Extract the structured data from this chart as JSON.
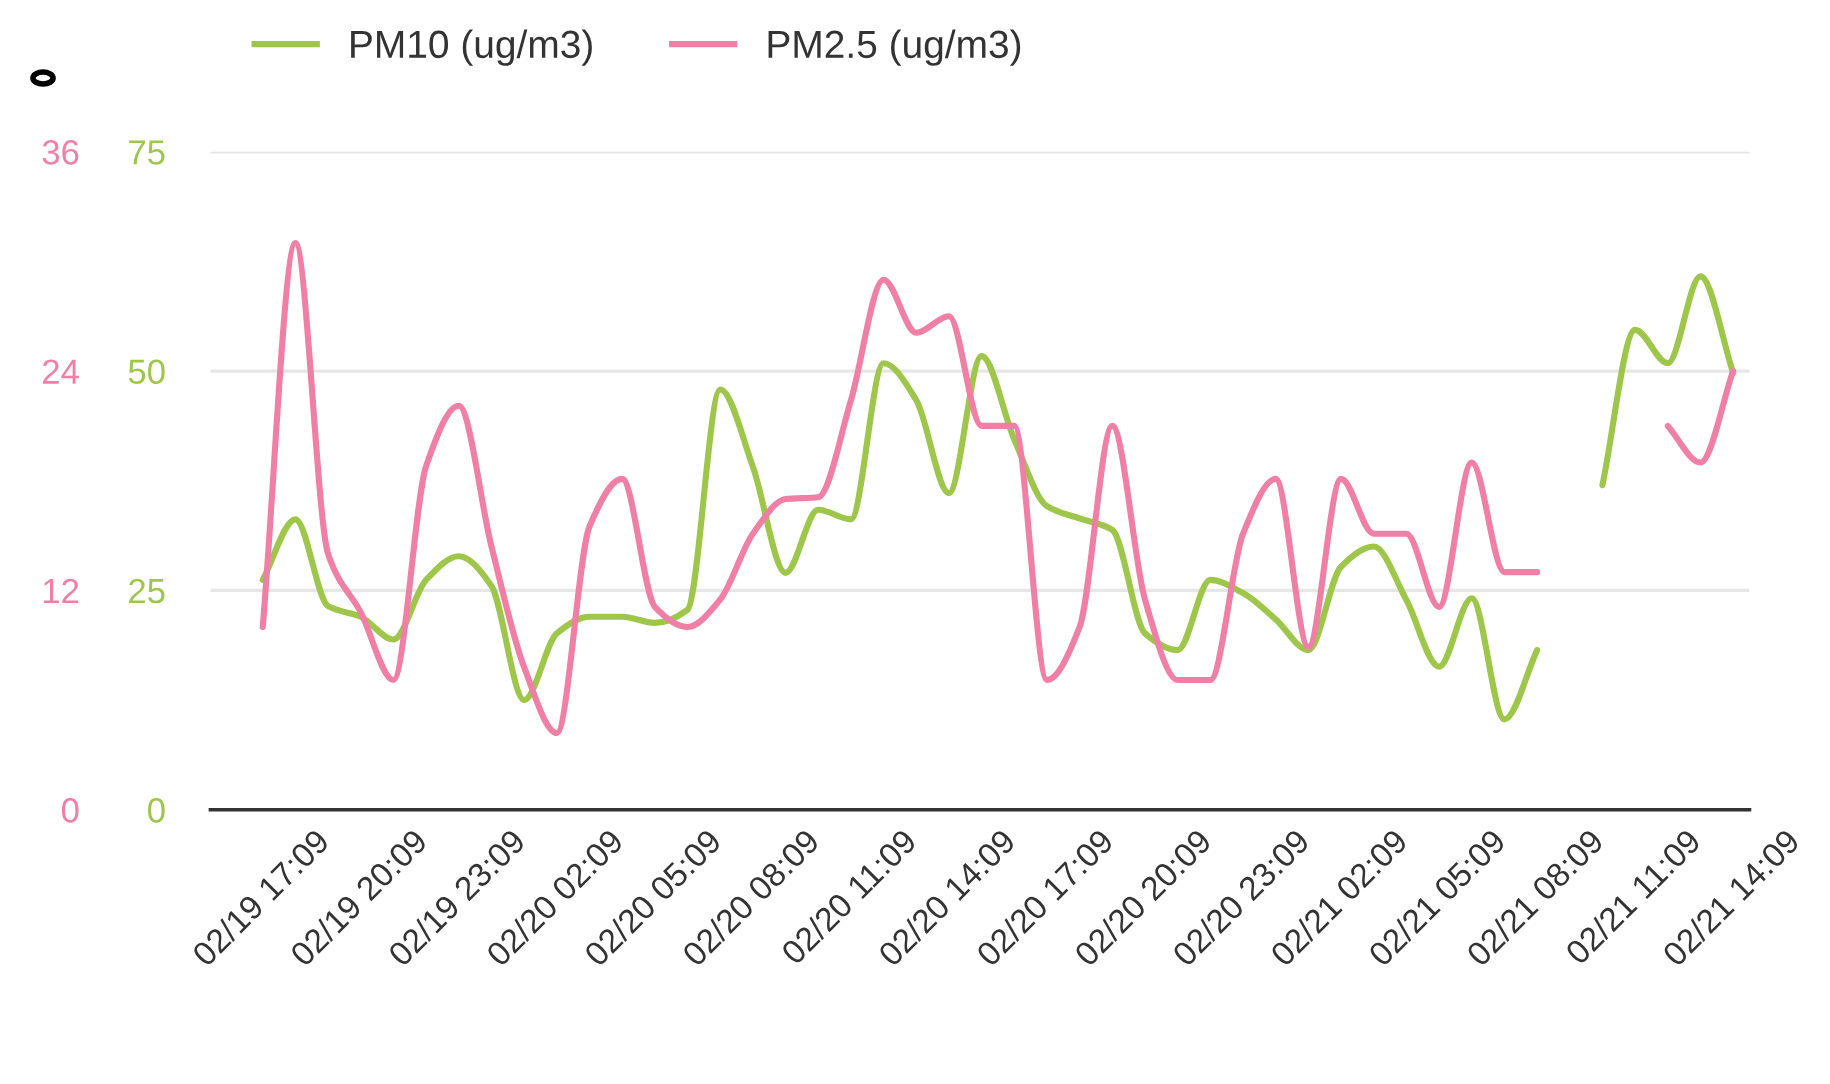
{
  "chart_data": {
    "type": "line",
    "categories": [
      "02/19 17:09",
      null,
      null,
      "02/19 20:09",
      null,
      null,
      "02/19 23:09",
      null,
      null,
      "02/20 02:09",
      null,
      null,
      "02/20 05:09",
      null,
      null,
      "02/20 08:09",
      null,
      null,
      "02/20 11:09",
      null,
      null,
      "02/20 14:09",
      null,
      null,
      "02/20 17:09",
      null,
      null,
      "02/20 20:09",
      null,
      null,
      "02/20 23:09",
      null,
      null,
      "02/21 02:09",
      null,
      null,
      "02/21 05:09",
      null,
      null,
      "02/21 08:09",
      null,
      null,
      "02/21 11:09",
      null,
      null,
      "02/21 14:09"
    ],
    "series": [
      {
        "name": "PM10 (ug/m3)",
        "color": "#9dc64a",
        "values": [
          26.2,
          33.1,
          23.2,
          22.0,
          19.4,
          26.2,
          28.9,
          25.5,
          12.5,
          20.1,
          22.0,
          22.0,
          21.3,
          22.8,
          47.9,
          39.1,
          27.0,
          34.2,
          33.1,
          50.9,
          46.7,
          36.1,
          51.7,
          42.2,
          34.6,
          33.2,
          31.9,
          20.1,
          18.2,
          26.2,
          24.7,
          21.7,
          18.2,
          27.7,
          30.0,
          23.9,
          16.3,
          24.1,
          10.3,
          18.2,
          null,
          37.0,
          54.7,
          50.9,
          60.8,
          49.8
        ]
      },
      {
        "name": "PM2.5 (ug/m3)",
        "color": "#f07fa6",
        "axis": "y2",
        "values": [
          10.0,
          31.0,
          14.0,
          10.8,
          7.1,
          18.8,
          22.1,
          14.4,
          7.8,
          4.2,
          15.5,
          18.1,
          11.1,
          10.0,
          11.5,
          15.1,
          17.0,
          17.1,
          22.4,
          29.0,
          26.1,
          27.0,
          21.0,
          21.0,
          7.1,
          10.0,
          21.0,
          11.5,
          7.1,
          7.1,
          15.1,
          18.1,
          8.9,
          18.1,
          15.1,
          15.1,
          11.1,
          19.0,
          13.0,
          13.0,
          null,
          null,
          null,
          21.0,
          19.0,
          24.0
        ]
      }
    ],
    "ylim": [
      0,
      75
    ],
    "yticks": [
      0,
      25,
      50,
      75
    ],
    "y2lim": [
      0,
      36
    ],
    "y2ticks": [
      0,
      12,
      24,
      36
    ],
    "grid": "y",
    "legend": "top left",
    "marker": "none",
    "line_style": "solid"
  }
}
